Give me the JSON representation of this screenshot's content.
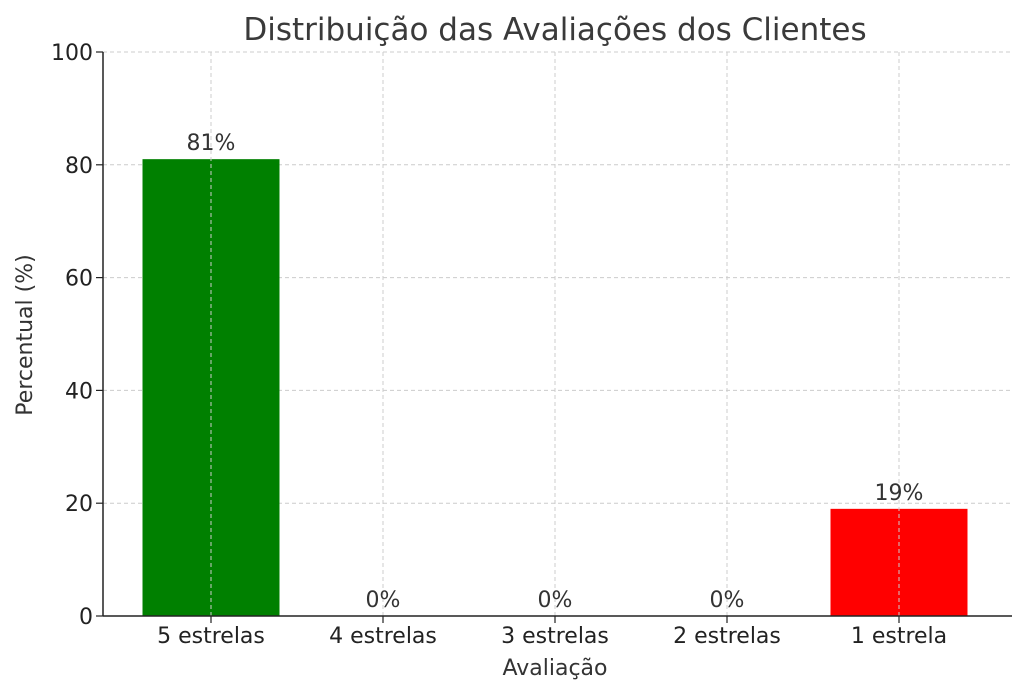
{
  "chart_data": {
    "type": "bar",
    "title": "Distribuição das Avaliações dos Clientes",
    "xlabel": "Avaliação",
    "ylabel": "Percentual (%)",
    "categories": [
      "5 estrelas",
      "4 estrelas",
      "3 estrelas",
      "2 estrelas",
      "1 estrela"
    ],
    "values": [
      81,
      0,
      0,
      0,
      19
    ],
    "data_labels": [
      "81%",
      "0%",
      "0%",
      "0%",
      "19%"
    ],
    "colors": [
      "#008000",
      "#008000",
      "#008000",
      "#008000",
      "#ff0000"
    ],
    "ylim": [
      0,
      100
    ],
    "yticks": [
      0,
      20,
      40,
      60,
      80,
      100
    ],
    "grid": true
  }
}
